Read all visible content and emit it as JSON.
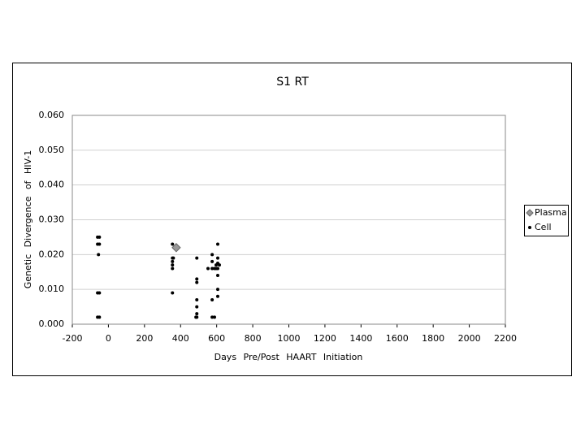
{
  "chart_data": {
    "type": "scatter",
    "title": "S1 RT",
    "x_label": "Days Pre/Post HAART Initiation",
    "y_label": "Genetic Divergence of HIV-1",
    "xlim": [
      -200,
      2200
    ],
    "xticks": [
      -200,
      0,
      200,
      400,
      600,
      800,
      1000,
      1200,
      1400,
      1600,
      1800,
      2000,
      2200
    ],
    "ylim": [
      0,
      0.06
    ],
    "yticks": [
      {
        "value": 0,
        "label": "0.000"
      },
      {
        "value": 0.01,
        "label": "0.010"
      },
      {
        "value": 0.02,
        "label": "0.020"
      },
      {
        "value": 0.03,
        "label": "0.030"
      },
      {
        "value": 0.04,
        "label": "0.040"
      },
      {
        "value": 0.05,
        "label": "0.050"
      },
      {
        "value": 0.06,
        "label": "0.060"
      }
    ],
    "grid": true,
    "legend": "right",
    "series": [
      {
        "name": "Plasma",
        "color": "#999999",
        "marker": "diamond",
        "x": [
          376
        ],
        "values": [
          0.022
        ]
      },
      {
        "name": "Cell",
        "color": "#000000",
        "marker": "circle",
        "x": [
          -60,
          -50,
          -60,
          -50,
          -55,
          -60,
          -50,
          -60,
          -50,
          355,
          355,
          355,
          355,
          355,
          355,
          360,
          490,
          490,
          490,
          490,
          490,
          490,
          490,
          485,
          552,
          575,
          575,
          575,
          575,
          575,
          588,
          588,
          597,
          597,
          606,
          606,
          606,
          606,
          606,
          606,
          606,
          615
        ],
        "values": [
          0.025,
          0.025,
          0.023,
          0.023,
          0.02,
          0.009,
          0.009,
          0.002,
          0.002,
          0.023,
          0.019,
          0.018,
          0.017,
          0.016,
          0.009,
          0.019,
          0.019,
          0.013,
          0.012,
          0.007,
          0.005,
          0.003,
          0.002,
          0.002,
          0.016,
          0.02,
          0.018,
          0.016,
          0.007,
          0.002,
          0.016,
          0.002,
          0.017,
          0.016,
          0.023,
          0.019,
          0.0175,
          0.016,
          0.014,
          0.01,
          0.008,
          0.017
        ]
      }
    ]
  }
}
